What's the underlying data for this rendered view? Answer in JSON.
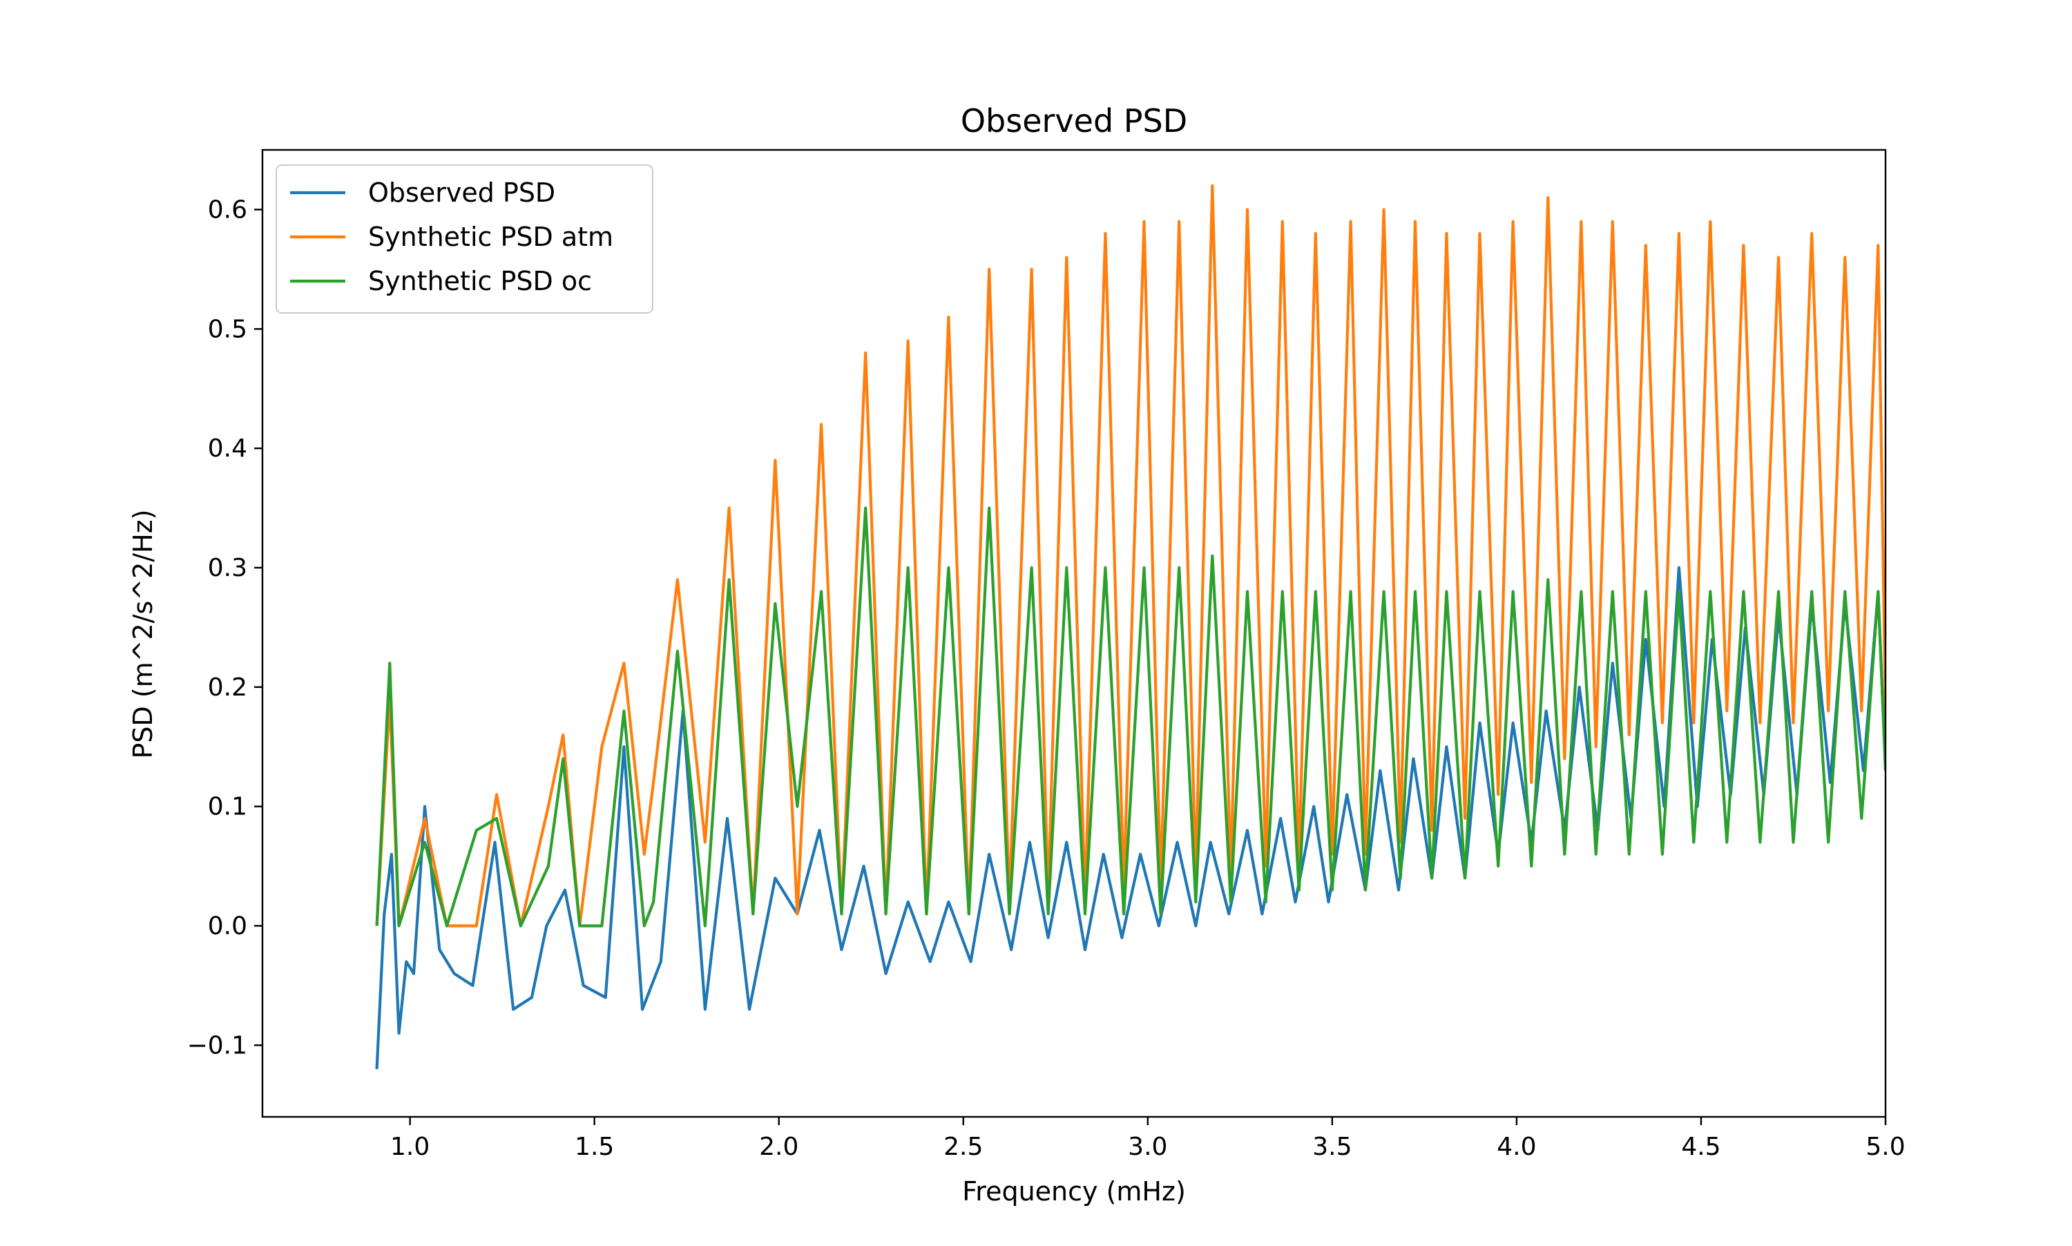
{
  "chart_data": {
    "type": "line",
    "title": "Observed PSD",
    "xlabel": "Frequency (mHz)",
    "ylabel": "PSD (m^2/s^2/Hz)",
    "xlim": [
      0.6,
      5.0
    ],
    "ylim": [
      -0.16,
      0.65
    ],
    "x_ticks": [
      1.0,
      1.5,
      2.0,
      2.5,
      3.0,
      3.5,
      4.0,
      4.5,
      5.0
    ],
    "x_tick_labels": [
      "1.0",
      "1.5",
      "2.0",
      "2.5",
      "3.0",
      "3.5",
      "4.0",
      "4.5",
      "5.0"
    ],
    "y_ticks": [
      -0.1,
      0.0,
      0.1,
      0.2,
      0.3,
      0.4,
      0.5,
      0.6
    ],
    "y_tick_labels": [
      "−0.1",
      "0.0",
      "0.1",
      "0.2",
      "0.3",
      "0.4",
      "0.5",
      "0.6"
    ],
    "grid": false,
    "legend_position": "top-left",
    "series": [
      {
        "name": "Observed PSD",
        "color": "#1f77b4",
        "x": [
          0.91,
          0.93,
          0.95,
          0.97,
          0.99,
          1.01,
          1.04,
          1.08,
          1.12,
          1.17,
          1.23,
          1.28,
          1.33,
          1.37,
          1.42,
          1.47,
          1.53,
          1.58,
          1.63,
          1.68,
          1.74,
          1.8,
          1.86,
          1.92,
          1.99,
          2.05,
          2.11,
          2.17,
          2.23,
          2.29,
          2.35,
          2.41,
          2.46,
          2.52,
          2.57,
          2.63,
          2.68,
          2.73,
          2.78,
          2.83,
          2.88,
          2.93,
          2.98,
          3.03,
          3.08,
          3.13,
          3.17,
          3.22,
          3.27,
          3.31,
          3.36,
          3.4,
          3.45,
          3.49,
          3.54,
          3.59,
          3.63,
          3.68,
          3.72,
          3.77,
          3.81,
          3.86,
          3.9,
          3.95,
          3.99,
          4.04,
          4.08,
          4.13,
          4.17,
          4.22,
          4.26,
          4.31,
          4.35,
          4.4,
          4.44,
          4.49,
          4.53,
          4.58,
          4.62,
          4.67,
          4.71,
          4.76,
          4.8,
          4.85,
          4.89,
          4.94,
          4.98,
          5.0
        ],
        "y": [
          -0.12,
          0.01,
          0.06,
          -0.09,
          -0.03,
          -0.04,
          0.1,
          -0.02,
          -0.04,
          -0.05,
          0.07,
          -0.07,
          -0.06,
          0.0,
          0.03,
          -0.05,
          -0.06,
          0.15,
          -0.07,
          -0.03,
          0.18,
          -0.07,
          0.09,
          -0.07,
          0.04,
          0.01,
          0.08,
          -0.02,
          0.05,
          -0.04,
          0.02,
          -0.03,
          0.02,
          -0.03,
          0.06,
          -0.02,
          0.07,
          -0.01,
          0.07,
          -0.02,
          0.06,
          -0.01,
          0.06,
          0.0,
          0.07,
          0.0,
          0.07,
          0.01,
          0.08,
          0.01,
          0.09,
          0.02,
          0.1,
          0.02,
          0.11,
          0.03,
          0.13,
          0.03,
          0.14,
          0.04,
          0.15,
          0.04,
          0.17,
          0.06,
          0.17,
          0.07,
          0.18,
          0.08,
          0.2,
          0.08,
          0.22,
          0.09,
          0.24,
          0.1,
          0.3,
          0.1,
          0.24,
          0.11,
          0.25,
          0.11,
          0.26,
          0.11,
          0.27,
          0.12,
          0.27,
          0.13,
          0.28,
          0.13
        ]
      },
      {
        "name": "Synthetic PSD atm",
        "color": "#ff7f0e",
        "x": [
          0.91,
          0.945,
          0.97,
          1.04,
          1.1,
          1.18,
          1.235,
          1.3,
          1.375,
          1.415,
          1.46,
          1.52,
          1.58,
          1.635,
          1.66,
          1.725,
          1.8,
          1.865,
          1.93,
          1.99,
          2.05,
          2.115,
          2.17,
          2.235,
          2.29,
          2.35,
          2.4,
          2.46,
          2.515,
          2.57,
          2.625,
          2.685,
          2.73,
          2.78,
          2.83,
          2.885,
          2.935,
          2.99,
          3.035,
          3.085,
          3.13,
          3.175,
          3.225,
          3.27,
          3.32,
          3.365,
          3.41,
          3.455,
          3.5,
          3.55,
          3.59,
          3.64,
          3.685,
          3.725,
          3.77,
          3.81,
          3.86,
          3.9,
          3.95,
          3.99,
          4.04,
          4.085,
          4.13,
          4.175,
          4.215,
          4.26,
          4.305,
          4.35,
          4.395,
          4.44,
          4.48,
          4.525,
          4.57,
          4.615,
          4.66,
          4.71,
          4.75,
          4.8,
          4.845,
          4.89,
          4.935,
          4.98,
          5.0
        ],
        "y": [
          0.0,
          0.19,
          0.0,
          0.09,
          0.0,
          0.0,
          0.11,
          0.0,
          0.1,
          0.16,
          0.0,
          0.15,
          0.22,
          0.06,
          0.12,
          0.29,
          0.07,
          0.35,
          0.01,
          0.39,
          0.01,
          0.42,
          0.01,
          0.48,
          0.01,
          0.49,
          0.01,
          0.51,
          0.01,
          0.55,
          0.02,
          0.55,
          0.02,
          0.56,
          0.02,
          0.58,
          0.03,
          0.59,
          0.03,
          0.59,
          0.04,
          0.62,
          0.04,
          0.6,
          0.05,
          0.59,
          0.05,
          0.58,
          0.06,
          0.59,
          0.06,
          0.6,
          0.07,
          0.59,
          0.08,
          0.58,
          0.09,
          0.58,
          0.11,
          0.59,
          0.12,
          0.61,
          0.14,
          0.59,
          0.15,
          0.59,
          0.16,
          0.57,
          0.17,
          0.58,
          0.17,
          0.59,
          0.18,
          0.57,
          0.17,
          0.56,
          0.17,
          0.58,
          0.18,
          0.56,
          0.18,
          0.57,
          0.18
        ]
      },
      {
        "name": "Synthetic PSD oc",
        "color": "#2ca02c",
        "x": [
          0.91,
          0.945,
          0.97,
          1.04,
          1.1,
          1.18,
          1.235,
          1.3,
          1.375,
          1.415,
          1.46,
          1.52,
          1.58,
          1.635,
          1.66,
          1.725,
          1.8,
          1.865,
          1.93,
          1.99,
          2.05,
          2.115,
          2.17,
          2.235,
          2.29,
          2.35,
          2.4,
          2.46,
          2.515,
          2.57,
          2.625,
          2.685,
          2.73,
          2.78,
          2.83,
          2.885,
          2.935,
          2.99,
          3.035,
          3.085,
          3.13,
          3.175,
          3.225,
          3.27,
          3.32,
          3.365,
          3.41,
          3.455,
          3.5,
          3.55,
          3.59,
          3.64,
          3.685,
          3.725,
          3.77,
          3.81,
          3.86,
          3.9,
          3.95,
          3.99,
          4.04,
          4.085,
          4.13,
          4.175,
          4.215,
          4.26,
          4.305,
          4.35,
          4.395,
          4.44,
          4.48,
          4.525,
          4.57,
          4.615,
          4.66,
          4.71,
          4.75,
          4.8,
          4.845,
          4.89,
          4.935,
          4.98,
          5.0
        ],
        "y": [
          0.0,
          0.22,
          0.0,
          0.07,
          0.0,
          0.08,
          0.09,
          0.0,
          0.05,
          0.14,
          0.0,
          0.0,
          0.18,
          0.0,
          0.02,
          0.23,
          0.0,
          0.29,
          0.01,
          0.27,
          0.1,
          0.28,
          0.01,
          0.35,
          0.01,
          0.3,
          0.01,
          0.3,
          0.01,
          0.35,
          0.01,
          0.3,
          0.01,
          0.3,
          0.01,
          0.3,
          0.01,
          0.3,
          0.01,
          0.3,
          0.02,
          0.31,
          0.02,
          0.28,
          0.02,
          0.28,
          0.03,
          0.28,
          0.03,
          0.28,
          0.03,
          0.28,
          0.04,
          0.28,
          0.04,
          0.28,
          0.04,
          0.28,
          0.05,
          0.28,
          0.05,
          0.29,
          0.06,
          0.28,
          0.06,
          0.28,
          0.06,
          0.28,
          0.06,
          0.28,
          0.07,
          0.28,
          0.07,
          0.28,
          0.07,
          0.28,
          0.07,
          0.28,
          0.07,
          0.28,
          0.09,
          0.28,
          0.13
        ]
      }
    ]
  }
}
